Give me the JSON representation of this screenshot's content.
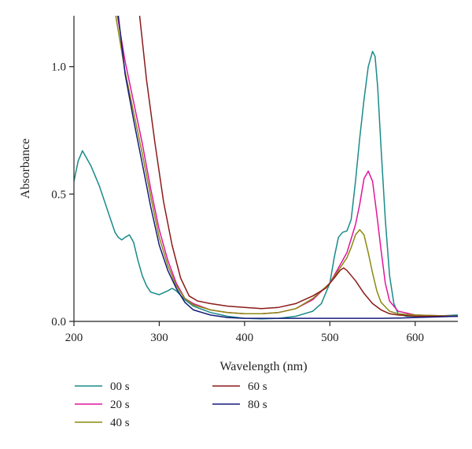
{
  "chart_data": {
    "type": "line",
    "xlabel": "Wavelength (nm)",
    "ylabel": "Absorbance",
    "xlim": [
      200,
      650
    ],
    "ylim": [
      0,
      1.2
    ],
    "xticks": [
      "200",
      "300",
      "400",
      "500",
      "600"
    ],
    "yticks": [
      "0.0",
      "0.5",
      "1.0"
    ],
    "grid": false,
    "legend_position": "bottom-left",
    "series": [
      {
        "name": "00 s",
        "color": "#1a8a8a",
        "points": [
          [
            200,
            0.55
          ],
          [
            205,
            0.63
          ],
          [
            210,
            0.67
          ],
          [
            215,
            0.64
          ],
          [
            220,
            0.61
          ],
          [
            230,
            0.53
          ],
          [
            240,
            0.43
          ],
          [
            248,
            0.35
          ],
          [
            252,
            0.33
          ],
          [
            256,
            0.32
          ],
          [
            260,
            0.33
          ],
          [
            265,
            0.34
          ],
          [
            270,
            0.31
          ],
          [
            275,
            0.24
          ],
          [
            280,
            0.18
          ],
          [
            285,
            0.14
          ],
          [
            290,
            0.115
          ],
          [
            300,
            0.105
          ],
          [
            310,
            0.12
          ],
          [
            315,
            0.13
          ],
          [
            320,
            0.12
          ],
          [
            330,
            0.085
          ],
          [
            340,
            0.06
          ],
          [
            360,
            0.035
          ],
          [
            380,
            0.02
          ],
          [
            400,
            0.012
          ],
          [
            420,
            0.01
          ],
          [
            440,
            0.012
          ],
          [
            460,
            0.02
          ],
          [
            480,
            0.04
          ],
          [
            490,
            0.07
          ],
          [
            500,
            0.15
          ],
          [
            505,
            0.25
          ],
          [
            510,
            0.33
          ],
          [
            515,
            0.35
          ],
          [
            520,
            0.355
          ],
          [
            525,
            0.4
          ],
          [
            530,
            0.55
          ],
          [
            535,
            0.72
          ],
          [
            540,
            0.87
          ],
          [
            545,
            1.0
          ],
          [
            550,
            1.06
          ],
          [
            553,
            1.04
          ],
          [
            556,
            0.92
          ],
          [
            560,
            0.68
          ],
          [
            565,
            0.4
          ],
          [
            570,
            0.18
          ],
          [
            575,
            0.07
          ],
          [
            580,
            0.03
          ],
          [
            590,
            0.02
          ],
          [
            600,
            0.02
          ],
          [
            620,
            0.02
          ],
          [
            650,
            0.025
          ]
        ]
      },
      {
        "name": "20 s",
        "color": "#e0159d",
        "points": [
          [
            251,
            1.2
          ],
          [
            260,
            1.02
          ],
          [
            270,
            0.86
          ],
          [
            280,
            0.7
          ],
          [
            290,
            0.52
          ],
          [
            300,
            0.36
          ],
          [
            310,
            0.24
          ],
          [
            320,
            0.15
          ],
          [
            330,
            0.09
          ],
          [
            340,
            0.07
          ],
          [
            360,
            0.045
          ],
          [
            380,
            0.035
          ],
          [
            400,
            0.03
          ],
          [
            420,
            0.03
          ],
          [
            440,
            0.035
          ],
          [
            460,
            0.05
          ],
          [
            480,
            0.085
          ],
          [
            500,
            0.15
          ],
          [
            510,
            0.21
          ],
          [
            520,
            0.27
          ],
          [
            530,
            0.38
          ],
          [
            535,
            0.46
          ],
          [
            540,
            0.56
          ],
          [
            545,
            0.59
          ],
          [
            550,
            0.55
          ],
          [
            555,
            0.42
          ],
          [
            560,
            0.28
          ],
          [
            565,
            0.15
          ],
          [
            570,
            0.08
          ],
          [
            580,
            0.04
          ],
          [
            600,
            0.025
          ],
          [
            650,
            0.02
          ]
        ]
      },
      {
        "name": "40 s",
        "color": "#8a8a10",
        "points": [
          [
            249,
            1.2
          ],
          [
            260,
            0.98
          ],
          [
            270,
            0.82
          ],
          [
            280,
            0.66
          ],
          [
            290,
            0.49
          ],
          [
            300,
            0.33
          ],
          [
            310,
            0.22
          ],
          [
            320,
            0.14
          ],
          [
            330,
            0.09
          ],
          [
            340,
            0.065
          ],
          [
            360,
            0.045
          ],
          [
            380,
            0.035
          ],
          [
            400,
            0.03
          ],
          [
            420,
            0.03
          ],
          [
            440,
            0.035
          ],
          [
            460,
            0.05
          ],
          [
            480,
            0.09
          ],
          [
            500,
            0.15
          ],
          [
            510,
            0.2
          ],
          [
            520,
            0.25
          ],
          [
            525,
            0.29
          ],
          [
            530,
            0.34
          ],
          [
            535,
            0.36
          ],
          [
            540,
            0.34
          ],
          [
            545,
            0.27
          ],
          [
            550,
            0.19
          ],
          [
            555,
            0.12
          ],
          [
            560,
            0.075
          ],
          [
            570,
            0.04
          ],
          [
            580,
            0.03
          ],
          [
            600,
            0.025
          ],
          [
            650,
            0.02
          ]
        ]
      },
      {
        "name": "60 s",
        "color": "#8b1a1a",
        "points": [
          [
            277,
            1.2
          ],
          [
            285,
            0.95
          ],
          [
            295,
            0.7
          ],
          [
            305,
            0.47
          ],
          [
            315,
            0.3
          ],
          [
            325,
            0.17
          ],
          [
            335,
            0.1
          ],
          [
            345,
            0.08
          ],
          [
            360,
            0.07
          ],
          [
            380,
            0.06
          ],
          [
            400,
            0.055
          ],
          [
            420,
            0.05
          ],
          [
            440,
            0.055
          ],
          [
            460,
            0.07
          ],
          [
            480,
            0.1
          ],
          [
            495,
            0.13
          ],
          [
            505,
            0.17
          ],
          [
            512,
            0.2
          ],
          [
            516,
            0.21
          ],
          [
            520,
            0.2
          ],
          [
            530,
            0.16
          ],
          [
            540,
            0.11
          ],
          [
            550,
            0.07
          ],
          [
            560,
            0.045
          ],
          [
            570,
            0.03
          ],
          [
            580,
            0.025
          ],
          [
            600,
            0.02
          ],
          [
            650,
            0.02
          ]
        ]
      },
      {
        "name": "80 s",
        "color": "#151a7a",
        "points": [
          [
            252,
            1.2
          ],
          [
            260,
            0.97
          ],
          [
            270,
            0.79
          ],
          [
            280,
            0.62
          ],
          [
            290,
            0.45
          ],
          [
            300,
            0.3
          ],
          [
            310,
            0.2
          ],
          [
            320,
            0.13
          ],
          [
            330,
            0.075
          ],
          [
            340,
            0.045
          ],
          [
            360,
            0.025
          ],
          [
            380,
            0.015
          ],
          [
            400,
            0.012
          ],
          [
            420,
            0.012
          ],
          [
            440,
            0.012
          ],
          [
            460,
            0.012
          ],
          [
            480,
            0.012
          ],
          [
            500,
            0.012
          ],
          [
            520,
            0.012
          ],
          [
            540,
            0.012
          ],
          [
            560,
            0.012
          ],
          [
            580,
            0.013
          ],
          [
            600,
            0.015
          ],
          [
            650,
            0.02
          ]
        ]
      }
    ]
  },
  "legend": {
    "items": [
      {
        "label": "00 s",
        "color": "#1a8a8a"
      },
      {
        "label": "20 s",
        "color": "#e0159d"
      },
      {
        "label": "40 s",
        "color": "#8a8a10"
      },
      {
        "label": "60 s",
        "color": "#8b1a1a"
      },
      {
        "label": "80 s",
        "color": "#151a7a"
      }
    ]
  }
}
